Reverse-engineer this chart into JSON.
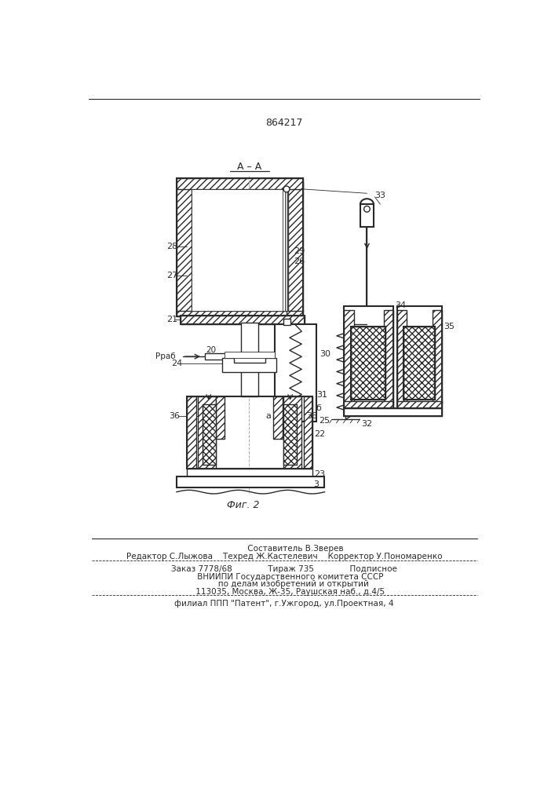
{
  "patent_number": "864217",
  "fig_label": "Фиг. 2",
  "section_label": "А – А",
  "footer_lines": [
    "         Составитель В.Зверев",
    "Редактор С.Лыжова    Техред Ж.Кастелевич    Корректор У.Пономаренко",
    "Заказ 7778/68              Тираж 735              Подписное",
    "     ВНИИПИ Государственного комитета СССР",
    "       по делам изобретений и открытий",
    "     113035, Москва, Ж-35, Раушская наб., д.4/5",
    "филиал ППП \"Патент\", г.Ужгород, ул.Проектная, 4"
  ],
  "bg_color": "#ffffff",
  "line_color": "#2a2a2a"
}
